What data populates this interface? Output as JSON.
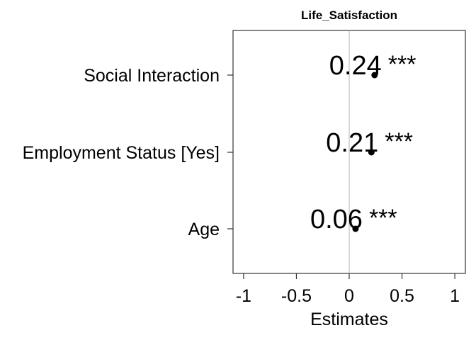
{
  "chart_data": {
    "type": "scatter",
    "title": "Life_Satisfaction",
    "xlabel": "Estimates",
    "ylabel": "",
    "xlim": [
      -1.1,
      1.1
    ],
    "x_ticks": [
      -1,
      -0.5,
      0,
      0.5,
      1
    ],
    "x_tick_labels": [
      "-1",
      "-0.5",
      "0",
      "0.5",
      "1"
    ],
    "reference_line": 0,
    "grid": false,
    "legend": "none",
    "categories": [
      "Social Interaction",
      "Employment Status [Yes]",
      "Age"
    ],
    "estimates": [
      0.24,
      0.21,
      0.06
    ],
    "estimate_labels": [
      "0.24",
      "0.21",
      "0.06"
    ],
    "significance": [
      "***",
      "***",
      "***"
    ],
    "colors": {
      "point": "#000000",
      "reference_line": "#b3b3b3",
      "frame": "#333333"
    }
  }
}
